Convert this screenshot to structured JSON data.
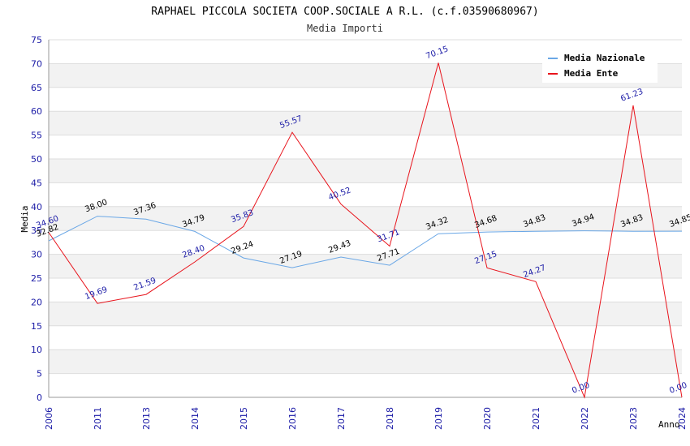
{
  "chart_data": {
    "type": "line",
    "title": "RAPHAEL PICCOLA SOCIETA COOP.SOCIALE A R.L. (c.f.03590680967)",
    "subtitle": "Media Importi",
    "xlabel": "Anno",
    "ylabel": "Media",
    "ylim": [
      0,
      75
    ],
    "yticks": [
      "0",
      "5",
      "10",
      "15",
      "20",
      "25",
      "30",
      "35",
      "40",
      "45",
      "50",
      "55",
      "60",
      "65",
      "70",
      "75"
    ],
    "categories": [
      "2006",
      "2011",
      "2013",
      "2014",
      "2015",
      "2016",
      "2017",
      "2018",
      "2019",
      "2020",
      "2021",
      "2022",
      "2023",
      "2024"
    ],
    "legend_position": "top-right",
    "series": [
      {
        "name": "Media Nazionale",
        "color": "#6aa7e6",
        "values": [
          32.82,
          38.0,
          37.36,
          34.79,
          29.24,
          27.19,
          29.43,
          27.71,
          34.32,
          34.68,
          34.83,
          34.94,
          34.83,
          34.85
        ],
        "labels": [
          "32.82",
          "38.00",
          "37.36",
          "34.79",
          "29.24",
          "27.19",
          "29.43",
          "27.71",
          "34.32",
          "34.68",
          "34.83",
          "34.94",
          "34.83",
          "34.85"
        ]
      },
      {
        "name": "Media Ente",
        "color": "#e8141c",
        "values": [
          34.6,
          19.69,
          21.59,
          28.4,
          35.83,
          55.57,
          40.52,
          31.71,
          70.15,
          27.15,
          24.27,
          0.0,
          61.23,
          0.0
        ],
        "labels": [
          "34.60",
          "19.69",
          "21.59",
          "28.40",
          "35.83",
          "55.57",
          "40.52",
          "31.71",
          "70.15",
          "27.15",
          "24.27",
          "0.00",
          "61.23",
          "0.00"
        ]
      }
    ]
  }
}
